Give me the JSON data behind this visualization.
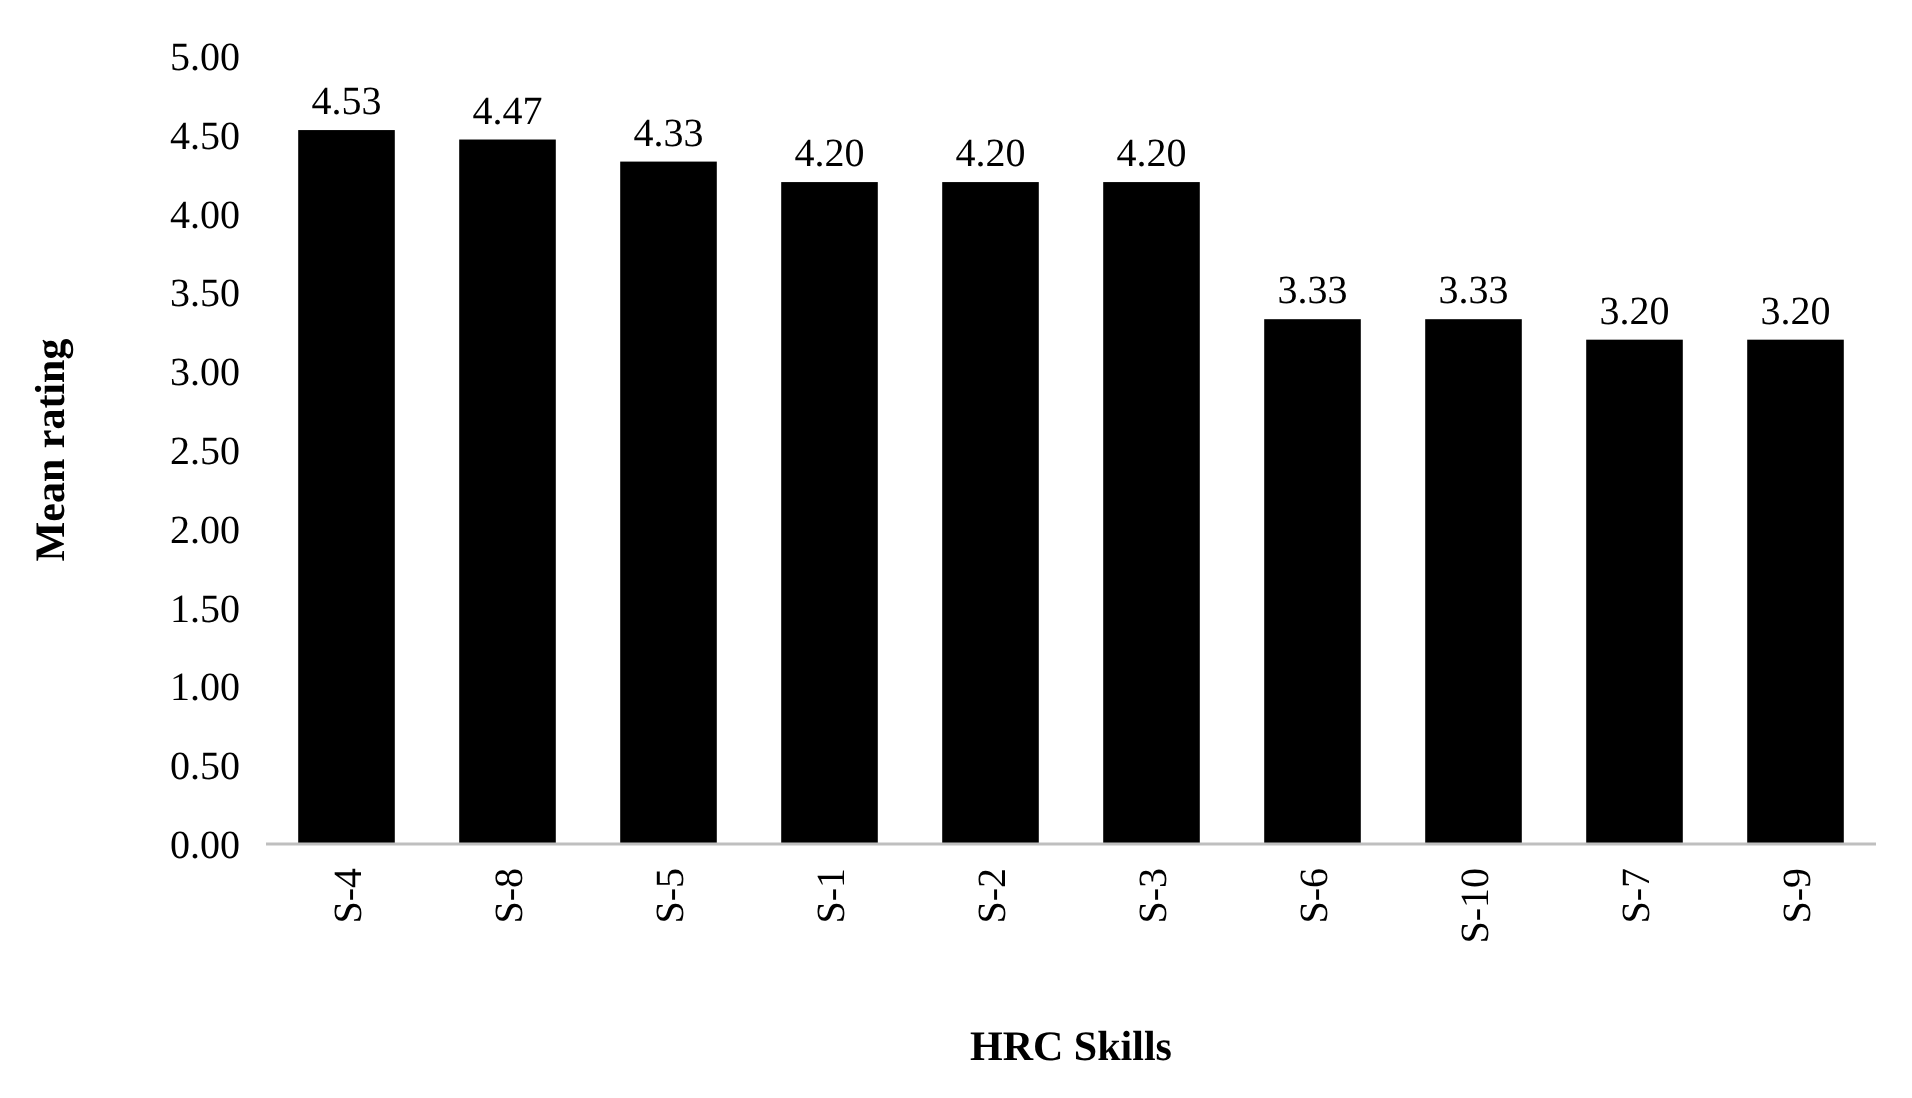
{
  "chart_data": {
    "type": "bar",
    "xlabel": "HRC Skills",
    "ylabel": "Mean rating",
    "categories": [
      "S-4",
      "S-8",
      "S-5",
      "S-1",
      "S-2",
      "S-3",
      "S-6",
      "S-10",
      "S-7",
      "S-9"
    ],
    "values": [
      4.53,
      4.47,
      4.33,
      4.2,
      4.2,
      4.2,
      3.33,
      3.33,
      3.2,
      3.2
    ],
    "color": "#000000",
    "ylim": [
      0,
      5
    ],
    "yticks": [
      {
        "value": 0,
        "label": "0.00"
      },
      {
        "value": 0.5,
        "label": "0.50"
      },
      {
        "value": 1,
        "label": "1.00"
      },
      {
        "value": 1.5,
        "label": "1.50"
      },
      {
        "value": 2,
        "label": "2.00"
      },
      {
        "value": 2.5,
        "label": "2.50"
      },
      {
        "value": 3,
        "label": "3.00"
      },
      {
        "value": 3.5,
        "label": "3.50"
      },
      {
        "value": 4,
        "label": "4.00"
      },
      {
        "value": 4.5,
        "label": "4.50"
      },
      {
        "value": 5,
        "label": "5.00"
      }
    ],
    "value_labels": [
      "4.53",
      "4.47",
      "4.33",
      "4.20",
      "4.20",
      "4.20",
      "3.33",
      "3.33",
      "3.20",
      "3.20"
    ],
    "grid": false
  }
}
